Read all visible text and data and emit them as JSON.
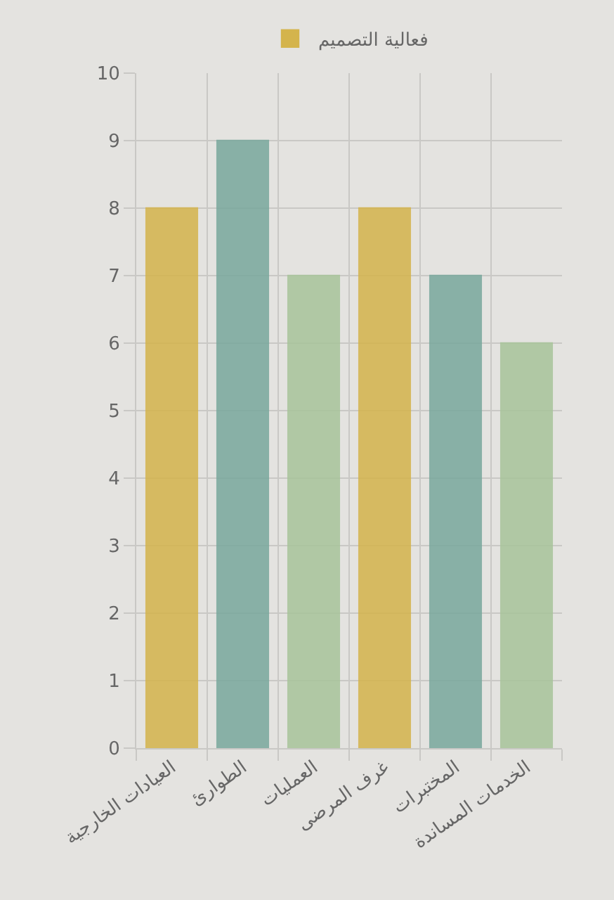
{
  "chart_data": {
    "type": "bar",
    "categories": [
      "العيادات الخارجية",
      "الطوارئ",
      "العمليات",
      "غرف المرضى",
      "المختبرات",
      "الخدمات المساندة"
    ],
    "series": [
      {
        "name": "فعالية التصميم",
        "colors": [
          "#d4b44c",
          "#78a89c",
          "#a8c49a",
          "#d4b44c",
          "#78a89c",
          "#a8c49a"
        ],
        "values": [
          8,
          9,
          7,
          8,
          7,
          6
        ]
      }
    ],
    "ylim": [
      0,
      10
    ],
    "yticks": [
      0,
      1,
      2,
      3,
      4,
      5,
      6,
      7,
      8,
      9,
      10
    ],
    "grid": true,
    "legend": "top"
  }
}
